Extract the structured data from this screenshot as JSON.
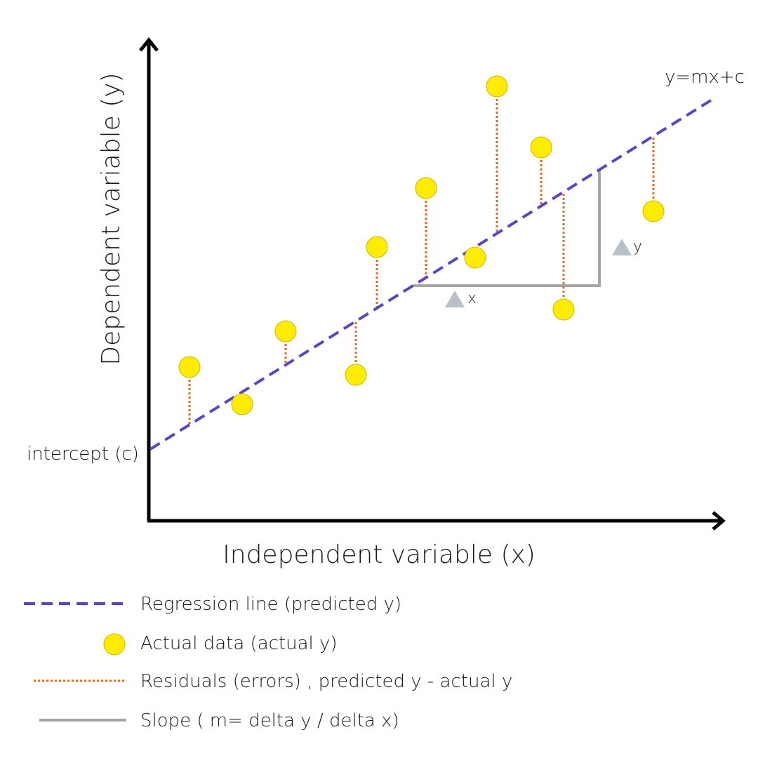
{
  "diagram": {
    "equation_label": "y=mx+c",
    "intercept_label": "intercept (c)",
    "x_axis_label": "Independent variable (x)",
    "y_axis_label": "Dependent variable (y)",
    "delta_x_label": "x",
    "delta_y_label": "y",
    "colors": {
      "axis": "#000000",
      "regression_line": "#5b45c0",
      "points": "#ffec00",
      "point_stroke": "#c9b800",
      "residuals": "#e0692a",
      "slope": "#a6a6a6",
      "delta_triangle": "#b8c0c8"
    }
  },
  "legend": {
    "items": [
      {
        "symbol": "dashed-line",
        "label": "Regression line (predicted y)"
      },
      {
        "symbol": "yellow-dot",
        "label": "Actual data (actual y)"
      },
      {
        "symbol": "dotted-line",
        "label": "Residuals (errors)  , predicted y  -  actual y"
      },
      {
        "symbol": "solid-line",
        "label": "Slope ( m= delta y / delta x)"
      }
    ]
  }
}
